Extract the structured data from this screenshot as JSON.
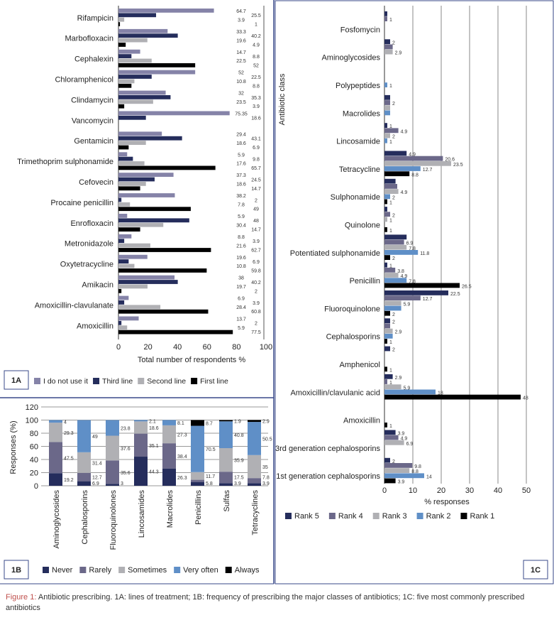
{
  "caption": {
    "label": "Figure 1:",
    "text": " Antibiotic prescribing. 1A: lines of treatment; 1B: frequency of prescribing the major classes of antibiotics; 1C: five most commonly prescribed antibiotics"
  },
  "colors": {
    "navy": "#252d5c",
    "slate": "#6b6889",
    "grey": "#b0b0b4",
    "blue": "#5f8fc7",
    "black": "#000000",
    "lightslate": "#8583a8"
  },
  "chart_data": [
    {
      "panel": "1A",
      "type": "bar",
      "orientation": "horizontal",
      "xlabel": "Total number of respondents %",
      "xlim": [
        0,
        100
      ],
      "xticks": [
        0,
        20,
        40,
        60,
        80,
        100
      ],
      "series_names": [
        "I do not use it",
        "Third line",
        "Second line",
        "First line"
      ],
      "categories": [
        "Rifampicin",
        "Marbofloxacin",
        "Cephalexin",
        "Chloramphenicol",
        "Clindamycin",
        "Vancomycin",
        "Gentamicin",
        "Trimethoprim sulphonamide",
        "Cefovecin",
        "Procaine penicillin",
        "Enrofloxacin",
        "Metronidazole",
        "Oxytetracycline",
        "Amikacin",
        "Amoxicillin-clavulanate",
        "Amoxicillin"
      ],
      "values": [
        [
          64.7,
          25.5,
          3.9,
          1
        ],
        [
          33.3,
          40.2,
          19.6,
          4.9
        ],
        [
          14.7,
          8.8,
          22.5,
          52
        ],
        [
          52,
          22.5,
          10.8,
          8.8
        ],
        [
          32,
          35.3,
          23.5,
          3.9
        ],
        [
          75.35,
          18.6,
          null,
          null
        ],
        [
          29.4,
          43.1,
          18.6,
          6.9
        ],
        [
          5.9,
          9.8,
          17.6,
          65.7
        ],
        [
          37.3,
          24.5,
          18.6,
          14.7
        ],
        [
          38.2,
          2,
          7.8,
          49
        ],
        [
          5.9,
          48,
          30.4,
          14.7
        ],
        [
          8.8,
          3.9,
          21.6,
          62.7
        ],
        [
          19.6,
          6.9,
          10.8,
          59.8
        ],
        [
          38,
          40.2,
          19.7,
          2
        ],
        [
          6.9,
          3.9,
          28.4,
          60.8
        ],
        [
          13.7,
          2,
          5.9,
          77.5
        ]
      ],
      "labels": [
        [
          "64.7",
          "25.5",
          "3.9",
          "1"
        ],
        [
          "33.3",
          "40.2",
          "19.6",
          "4.9"
        ],
        [
          "14.7",
          "8.8",
          "22.5",
          "52"
        ],
        [
          "52",
          "22.5",
          "10.8",
          "8.8"
        ],
        [
          "32",
          "35.3",
          "23.5",
          "3.9"
        ],
        [
          "75.35",
          "18.6"
        ],
        [
          "29.4",
          "43.1",
          "18.6",
          "6.9"
        ],
        [
          "5.9",
          "9.8",
          "17.6",
          "65.7"
        ],
        [
          "37.3",
          "24.5",
          "18.6",
          "14.7"
        ],
        [
          "38.2",
          "2",
          "7.8",
          "49"
        ],
        [
          "5.9",
          "48",
          "30.4",
          "14.7"
        ],
        [
          "8.8",
          "3.9",
          "21.6",
          "62.7"
        ],
        [
          "19.6",
          "6.9",
          "10.8",
          "59.8"
        ],
        [
          "38",
          "40.2",
          "19.7",
          "2"
        ],
        [
          "6.9",
          "3.9",
          "28.4",
          "60.8"
        ],
        [
          "13.7",
          "2",
          "5.9",
          "77.5"
        ]
      ]
    },
    {
      "panel": "1B",
      "type": "bar",
      "stacked": true,
      "ylabel": "Responses (%)",
      "ylim": [
        0,
        120
      ],
      "yticks": [
        0,
        20,
        40,
        60,
        80,
        100,
        120
      ],
      "series_names": [
        "Never",
        "Rarely",
        "Sometimes",
        "Very often",
        "Always"
      ],
      "categories": [
        "Aminoglycosides",
        "Cephalosporins",
        "Fluoroquinolones",
        "Lincosamides",
        "Macrolides",
        "Penicillins",
        "Sulfas",
        "Tetracyclines"
      ],
      "values": [
        [
          19.2,
          47.5,
          29.3,
          4,
          0
        ],
        [
          6.9,
          12.7,
          31.4,
          49,
          0
        ],
        [
          3,
          35.6,
          37.6,
          23.8,
          0
        ],
        [
          44.3,
          35.1,
          18.6,
          2.1,
          0
        ],
        [
          26.3,
          38.4,
          27.3,
          8.1,
          0
        ],
        [
          5.8,
          3.3,
          11.7,
          70.5,
          8.7
        ],
        [
          3.9,
          17.5,
          35.9,
          40.8,
          1.9
        ],
        [
          3.9,
          7.8,
          35,
          50.5,
          2.9
        ]
      ],
      "labels": [
        [
          "19.2",
          "47.5",
          "29.3",
          "4",
          ""
        ],
        [
          "6.9",
          "12.7",
          "31.4",
          "49",
          ""
        ],
        [
          "3",
          "35.6",
          "37.6",
          "23.8",
          ""
        ],
        [
          "44.3",
          "35.1",
          "18.6",
          "2.1",
          ""
        ],
        [
          "26.3",
          "38.4",
          "27.3",
          "8.1",
          ""
        ],
        [
          "5.8",
          "",
          "11.7",
          "70.5",
          "8.7"
        ],
        [
          "3.9",
          "17.5",
          "35.9",
          "40.8",
          "1.9"
        ],
        [
          "3.9",
          "7.8",
          "35",
          "50.5",
          "2.9"
        ]
      ]
    },
    {
      "panel": "1C",
      "type": "bar",
      "orientation": "horizontal",
      "xlabel": "% responses",
      "ylabel": "Antibiotic class",
      "xlim": [
        0,
        50
      ],
      "xticks": [
        0,
        10,
        20,
        30,
        40,
        50
      ],
      "series_names": [
        "Rank 5",
        "Rank 4",
        "Rank 3",
        "Rank 2",
        "Rank 1"
      ],
      "categories": [
        "Fosfomycin",
        "Aminoglycosides",
        "Polypeptides",
        "Macrolides",
        "Lincosamide",
        "Tetracycline",
        "Sulphonamide",
        "Quinolone",
        "Potentiated sulphonamide",
        "Penicillin",
        "Fluoroquinolone",
        "Cephalosporins",
        "Amphenicol",
        "Amoxicillin/clavulanic acid",
        "Amoxicillin",
        "3rd generation cephalosporins",
        "1st generation cephalosporins"
      ],
      "values": [
        [
          1,
          1,
          null,
          null,
          null
        ],
        [
          2,
          2.9,
          2.9,
          null,
          null
        ],
        [
          null,
          null,
          null,
          1,
          null
        ],
        [
          2,
          2,
          2,
          2,
          null
        ],
        [
          1,
          4.9,
          2,
          1,
          null
        ],
        [
          7.8,
          20.6,
          23.5,
          12.7,
          8.8
        ],
        [
          3.9,
          4.5,
          4.9,
          2,
          1
        ],
        [
          1,
          2,
          1,
          null,
          1
        ],
        [
          7.8,
          6.9,
          7.8,
          11.8,
          2
        ],
        [
          1,
          3.8,
          4.9,
          7.8,
          26.5
        ],
        [
          22.5,
          12.7,
          5.9,
          5.9,
          2
        ],
        [
          2,
          2,
          2.9,
          2.9,
          1
        ],
        [
          2,
          null,
          null,
          null,
          1
        ],
        [
          2.9,
          1,
          5.9,
          18,
          48
        ],
        [
          null,
          null,
          null,
          null,
          1
        ],
        [
          3.9,
          4.9,
          6.9,
          null,
          null
        ],
        [
          2,
          9.8,
          8.8,
          14,
          3.9
        ]
      ],
      "labels": [
        [
          "",
          "1",
          "",
          "",
          ""
        ],
        [
          "2",
          "",
          "2.9",
          "",
          ""
        ],
        [
          "",
          "",
          "",
          "1",
          ""
        ],
        [
          "",
          "2",
          "",
          "",
          ""
        ],
        [
          "1",
          "4.9",
          "2",
          "1",
          ""
        ],
        [
          "4.9",
          "20.6",
          "23.5",
          "12.7",
          "8.8"
        ],
        [
          "",
          "",
          "4.9",
          "2",
          "1"
        ],
        [
          "",
          "2",
          "1",
          "",
          "1"
        ],
        [
          "",
          "6.9",
          "7.8",
          "11.8",
          "2"
        ],
        [
          "1",
          "3.8",
          "4.9",
          "7.8",
          "26.5"
        ],
        [
          "22.5",
          "12.7",
          "5.9",
          "",
          "2"
        ],
        [
          "2",
          "",
          "2.9",
          "",
          "1"
        ],
        [
          "2",
          "",
          "",
          "",
          "1"
        ],
        [
          "2.9",
          "1",
          "5.9",
          "18",
          "48"
        ],
        [
          "",
          "",
          "",
          "",
          "1"
        ],
        [
          "3.9",
          "4.9",
          "6.9",
          "",
          ""
        ],
        [
          "2",
          "9.8",
          "8.8",
          "14",
          "3.9"
        ]
      ]
    }
  ],
  "panel_tags": {
    "a": "1A",
    "b": "1B",
    "c": "1C"
  }
}
